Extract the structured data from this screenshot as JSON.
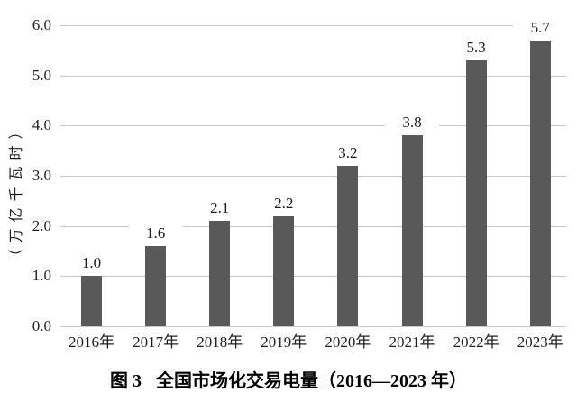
{
  "figure": {
    "caption_prefix": "图 3",
    "caption_text": "全国市场化交易电量（2016—2023 年）"
  },
  "chart_data": {
    "type": "bar",
    "title": "图 3 全国市场化交易电量（2016—2023 年）",
    "xlabel": "",
    "ylabel": "（万亿千瓦时）",
    "categories": [
      "2016年",
      "2017年",
      "2018年",
      "2019年",
      "2020年",
      "2021年",
      "2022年",
      "2023年"
    ],
    "values": [
      1.0,
      1.6,
      2.1,
      2.2,
      3.2,
      3.8,
      5.3,
      5.7
    ],
    "value_labels": [
      "1.0",
      "1.6",
      "2.1",
      "2.2",
      "3.2",
      "3.8",
      "5.3",
      "5.7"
    ],
    "ylim": [
      0.0,
      6.0
    ],
    "ytick_labels": [
      "6.0",
      "5.0",
      "4.0",
      "3.0",
      "2.0",
      "1.0",
      "0.0"
    ],
    "grid": true,
    "legend": "none",
    "bar_color": "#595959",
    "gridline_color": "#c9c9c9",
    "text_color": "#1f1f1f",
    "background_color": "#ffffff"
  }
}
